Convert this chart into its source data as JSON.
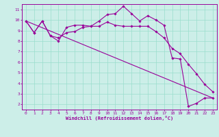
{
  "xlabel": "Windchill (Refroidissement éolien,°C)",
  "ylabel": "",
  "background_color": "#cceee8",
  "grid_color": "#99ddcc",
  "line_color": "#990099",
  "xlim": [
    -0.5,
    23.5
  ],
  "ylim": [
    1.5,
    11.5
  ],
  "yticks": [
    2,
    3,
    4,
    5,
    6,
    7,
    8,
    9,
    10,
    11
  ],
  "xticks": [
    0,
    1,
    2,
    3,
    4,
    5,
    6,
    7,
    8,
    9,
    10,
    11,
    12,
    13,
    14,
    15,
    16,
    17,
    18,
    19,
    20,
    21,
    22,
    23
  ],
  "line1_x": [
    0,
    1,
    2,
    3,
    4,
    5,
    6,
    7,
    8,
    9,
    10,
    11,
    12,
    13,
    14,
    15,
    16,
    17,
    18,
    19,
    20,
    21,
    22,
    23
  ],
  "line1_y": [
    9.9,
    8.8,
    9.9,
    8.5,
    8.0,
    9.3,
    9.5,
    9.5,
    9.4,
    9.9,
    10.5,
    10.6,
    11.3,
    10.6,
    9.9,
    10.4,
    10.0,
    9.5,
    6.4,
    6.3,
    1.8,
    2.1,
    2.6,
    2.6
  ],
  "line2_x": [
    0,
    1,
    2,
    3,
    4,
    5,
    6,
    7,
    8,
    9,
    10,
    11,
    12,
    13,
    14,
    15,
    16,
    17,
    18,
    19,
    20,
    21,
    22,
    23
  ],
  "line2_y": [
    9.9,
    8.8,
    9.9,
    8.5,
    8.3,
    8.8,
    8.9,
    9.3,
    9.4,
    9.4,
    9.8,
    9.5,
    9.4,
    9.4,
    9.4,
    9.4,
    8.9,
    8.3,
    7.3,
    6.8,
    5.8,
    4.9,
    3.9,
    3.2
  ],
  "line3_x": [
    0,
    23
  ],
  "line3_y": [
    9.9,
    2.6
  ]
}
